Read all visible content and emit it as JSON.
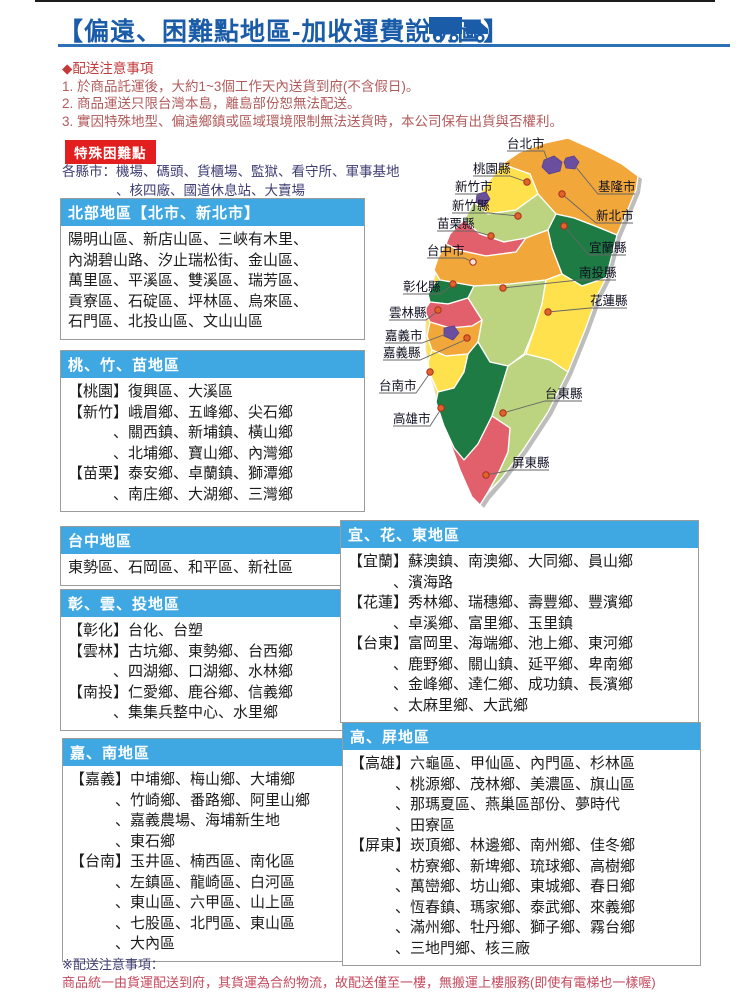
{
  "title": "【偏遠、困難點地區-加收運費說明圖】",
  "notices": {
    "heading": "◆配送注意事項",
    "items": [
      "1. 於商品託運後，大約1~3個工作天內送貨到府(不含假日)。",
      "2. 商品運送只限台灣本島，離島部份恕無法配送。",
      "3. 實因特殊地型、偏遠鄉鎮或區域環境限制無法送貨時，本公司保有出貨與否權利。"
    ]
  },
  "special": {
    "badge": "特殊困難點",
    "line1": "各縣市：機場、碼頭、貨櫃場、監獄、看守所、軍事基地",
    "line2": "、核四廠、國道休息站、大賣場"
  },
  "regions": [
    {
      "header": "北部地區【北市、新北市】",
      "lines": [
        "陽明山區、新店山區、三峽有木里、",
        "內湖碧山路、汐止瑞松街、金山區、",
        "萬里區、平溪區、雙溪區、瑞芳區、",
        "貢寮區、石碇區、坪林區、烏來區、",
        "石門區、北投山區、文山山區"
      ]
    },
    {
      "header": "桃、竹、苗地區",
      "lines": [
        "【桃園】復興區、大溪區",
        "【新竹】峨眉鄉、五峰鄉、尖石鄉",
        "　　　、關西鎮、新埔鎮、橫山鄉",
        "　　　、北埔鄉、寶山鄉、內灣鄉",
        "【苗栗】泰安鄉、卓蘭鎮、獅潭鄉",
        "　　　、南庄鄉、大湖鄉、三灣鄉"
      ]
    },
    {
      "header": "台中地區",
      "lines": [
        "東勢區、石岡區、和平區、新社區"
      ]
    },
    {
      "header": "彰、雲、投地區",
      "lines": [
        "【彰化】台化、台塑",
        "【雲林】古坑鄉、東勢鄉、台西鄉",
        "　　　、四湖鄉、口湖鄉、水林鄉",
        "【南投】仁愛鄉、鹿谷鄉、信義鄉",
        "　　　、集集兵整中心、水里鄉"
      ]
    },
    {
      "header": "嘉、南地區",
      "lines": [
        "【嘉義】中埔鄉、梅山鄉、大埔鄉",
        "　　　、竹崎鄉、番路鄉、阿里山鄉",
        "　　　、嘉義農場、海埔新生地",
        "　　　、東石鄉",
        "【台南】玉井區、楠西區、南化區",
        "　　　、左鎮區、龍崎區、白河區",
        "　　　、東山區、六甲區、山上區",
        "　　　、七股區、北門區、東山區",
        "　　　、大內區"
      ]
    },
    {
      "header": "宜、花、東地區",
      "lines": [
        "【宜蘭】蘇澳鎮、南澳鄉、大同鄉、員山鄉",
        "　　　、濱海路",
        "【花蓮】秀林鄉、瑞穗鄉、壽豐鄉、豐濱鄉",
        "　　　、卓溪鄉、富里鄉、玉里鎮",
        "【台東】富岡里、海端鄉、池上鄉、東河鄉",
        "　　　、鹿野鄉、關山鎮、延平鄉、卑南鄉",
        "　　　、金峰鄉、達仁鄉、成功鎮、長濱鄉",
        "　　　、太麻里鄉、大武鄉"
      ]
    },
    {
      "header": "高、屏地區",
      "lines": [
        "【高雄】六龜區、甲仙區、內門區、杉林區",
        "　　　、桃源鄉、茂林鄉、美濃區、旗山區",
        "　　　、那瑪夏區、燕巢區部份、夢時代",
        "　　　、田寮區",
        "【屏東】崁頂鄉、林邊鄉、南州鄉、佳冬鄉",
        "　　　、枋寮鄉、新埤鄉、琉球鄉、高樹鄉",
        "　　　、萬巒鄉、坊山鄉、東城鄉、春日鄉",
        "　　　、恆春鎮、瑪家鄉、泰武鄉、來義鄉",
        "　　　、滿州鄉、牡丹鄉、獅子鄉、霧台鄉",
        "　　　、三地門鄉、核三廠"
      ]
    }
  ],
  "map": {
    "labels": [
      {
        "text": "台北市"
      },
      {
        "text": "桃園縣"
      },
      {
        "text": "新竹市"
      },
      {
        "text": "新竹縣"
      },
      {
        "text": "苗栗縣"
      },
      {
        "text": "台中市"
      },
      {
        "text": "彰化縣"
      },
      {
        "text": "雲林縣"
      },
      {
        "text": "嘉義市"
      },
      {
        "text": "嘉義縣"
      },
      {
        "text": "台南市"
      },
      {
        "text": "高雄市"
      },
      {
        "text": "基隆市"
      },
      {
        "text": "新北市"
      },
      {
        "text": "宜蘭縣"
      },
      {
        "text": "南投縣"
      },
      {
        "text": "花蓮縣"
      },
      {
        "text": "台東縣"
      },
      {
        "text": "屏東縣"
      }
    ]
  },
  "footer": {
    "heading": "※配送注意事項：",
    "text": "商品統一由貨運配送到府，其貨運為合約物流，故配送僅至一樓，無搬運上樓服務(即使有電梯也一樣喔)"
  },
  "colors": {
    "title_blue": "#1A5CA8",
    "header_blue": "#3FA8E2",
    "badge_red": "#E31E1E",
    "note_red": "#B25B5B",
    "map_orange": "#F2A73B",
    "map_yellow": "#FFE14E",
    "map_dark_green": "#1E7B43",
    "map_light_green": "#BCD37F",
    "map_red": "#E2606B",
    "map_purple": "#6B4EA0"
  }
}
